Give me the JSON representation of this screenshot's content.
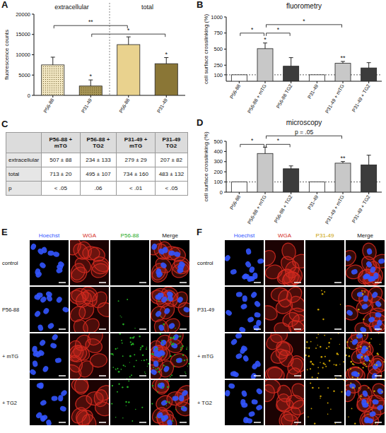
{
  "chart_data": [
    {
      "panel_label": "A",
      "type": "bar",
      "y_label": "fluorescence counts",
      "categories": [
        "P56-88",
        "P31-49",
        "P56-88",
        "P31-49"
      ],
      "groups": [
        {
          "label": "extracellular",
          "members": [
            0,
            1
          ]
        },
        {
          "label": "total",
          "members": [
            2,
            3
          ]
        }
      ],
      "values": [
        7500,
        2300,
        12500,
        7800
      ],
      "errors": [
        1900,
        1500,
        1900,
        1500
      ],
      "colors": [
        "#f1e6c2",
        "#a89656",
        "#e9d28e",
        "#8a7636"
      ],
      "ylim": [
        0,
        20000
      ],
      "yticks": [
        0,
        5000,
        10000,
        15000,
        20000
      ],
      "significance": [
        {
          "bars": [
            1
          ],
          "label": "*"
        },
        {
          "bars": [
            3
          ],
          "label": "*"
        },
        {
          "bars": [
            1,
            3
          ],
          "label": "*"
        },
        {
          "bars": [
            0,
            2
          ],
          "label": "**"
        }
      ]
    },
    {
      "panel_label": "B",
      "type": "bar",
      "title": "fluorometry",
      "y_label": "cell surface crosslinking (%)",
      "categories": [
        "P56-88",
        "P56-88 + mTG",
        "P56-88 TG2",
        "P31-49",
        "P31-49 + mTG",
        "P31-49 + TG2"
      ],
      "values": [
        100,
        507,
        234,
        100,
        279,
        207
      ],
      "errors": [
        null,
        88,
        133,
        null,
        29,
        82
      ],
      "colors": [
        "#ffffff",
        "#c8c8c8",
        "#3c3c3c",
        "#ffffff",
        "#c8c8c8",
        "#3c3c3c"
      ],
      "ylim": [
        0,
        1000
      ],
      "yticks": [
        100,
        250,
        500,
        750,
        1000
      ],
      "reference_line": 100,
      "significance": [
        {
          "bars": [
            1
          ],
          "label": "*"
        },
        {
          "bars": [
            4
          ],
          "label": "**"
        },
        {
          "bars": [
            0,
            1
          ],
          "label": "*"
        },
        {
          "bars": [
            1,
            2
          ],
          "label": "*"
        },
        {
          "bars": [
            1,
            4
          ],
          "label": "*"
        }
      ]
    },
    {
      "panel_label": "D",
      "type": "bar",
      "title": "microscopy",
      "y_label": "cell surface crosslinking (%)",
      "categories": [
        "P56-88",
        "P56-88 + mTG",
        "P56-88 + TG2",
        "P31-49",
        "P31-49 + mTG",
        "P31-49 + TG2"
      ],
      "values": [
        100,
        380,
        230,
        100,
        285,
        268
      ],
      "errors": [
        null,
        62,
        28,
        null,
        16,
        95
      ],
      "colors": [
        "#ffffff",
        "#c8c8c8",
        "#3c3c3c",
        "#ffffff",
        "#c8c8c8",
        "#3c3c3c"
      ],
      "ylim": [
        0,
        500
      ],
      "yticks": [
        0,
        100,
        200,
        300,
        400,
        500
      ],
      "reference_line": 100,
      "significance": [
        {
          "bars": [
            4
          ],
          "label": "**"
        },
        {
          "bars": [
            0,
            1
          ],
          "label": "*"
        },
        {
          "bars": [
            1,
            2
          ],
          "label": "*"
        },
        {
          "bars": [
            1,
            4
          ],
          "label": "p = .05"
        }
      ]
    }
  ],
  "table": {
    "panel_label": "C",
    "columns": [
      "P56-88 + mTG",
      "P56-88 + TG2",
      "P31-49 + mTG",
      "P31-49 TG2"
    ],
    "rows": [
      {
        "label": "extracellular",
        "cells": [
          "507 ± 88",
          "234 ± 133",
          "279 ± 29",
          "207 ± 82"
        ]
      },
      {
        "label": "total",
        "cells": [
          "713 ± 20",
          "495 ± 107",
          "734 ± 160",
          "483 ± 132"
        ]
      },
      {
        "label": "p",
        "cells": [
          "< .05",
          ".06",
          "< .01",
          "< .05"
        ]
      }
    ]
  },
  "image_panels": [
    {
      "panel_label": "E",
      "channels": [
        {
          "name": "Hoechst",
          "color": "#3355ff"
        },
        {
          "name": "WGA",
          "color": "#d42a20"
        },
        {
          "name": "P56-88",
          "color": "#22aa22"
        },
        {
          "name": "Merge",
          "color": "#111111"
        }
      ],
      "rows": [
        "control",
        "P56-88",
        "+ mTG",
        "+ TG2"
      ]
    },
    {
      "panel_label": "F",
      "channels": [
        {
          "name": "Hoechst",
          "color": "#3355ff"
        },
        {
          "name": "WGA",
          "color": "#d42a20"
        },
        {
          "name": "P31-49",
          "color": "#c9a000"
        },
        {
          "name": "Merge",
          "color": "#111111"
        }
      ],
      "rows": [
        "control",
        "P31-49",
        "+ mTG",
        "+ TG2"
      ]
    }
  ]
}
